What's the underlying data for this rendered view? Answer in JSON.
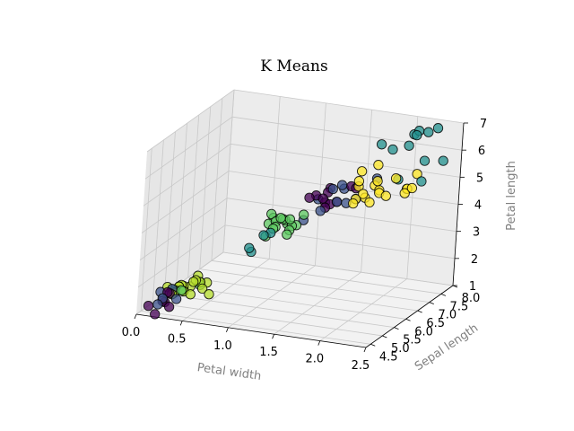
{
  "chart_data": {
    "type": "scatter",
    "projection": "3d",
    "title": "K Means",
    "axes": {
      "x": {
        "label": "Petal width",
        "range": [
          0.0,
          2.5
        ],
        "ticks": [
          "0.0",
          "0.5",
          "1.0",
          "1.5",
          "2.0",
          "2.5"
        ]
      },
      "y": {
        "label": "Sepal length",
        "range": [
          4.3,
          8.0
        ],
        "ticks": [
          "4.5",
          "5.0",
          "5.5",
          "6.0",
          "6.5",
          "7.0",
          "7.5",
          "8.0"
        ]
      },
      "z": {
        "label": "Petal length",
        "range": [
          1.0,
          7.0
        ],
        "ticks": [
          "1",
          "2",
          "3",
          "4",
          "5",
          "6",
          "7"
        ]
      }
    },
    "grid": true,
    "colormap": "viridis",
    "clusters": [
      {
        "color": "#440154",
        "points": [
          [
            0.2,
            4.6,
            1.4
          ],
          [
            0.1,
            4.4,
            1.3
          ],
          [
            0.2,
            4.3,
            1.1
          ],
          [
            0.2,
            4.8,
            1.6
          ],
          [
            0.3,
            4.5,
            1.3
          ],
          [
            0.2,
            4.7,
            1.3
          ],
          [
            0.2,
            4.9,
            1.5
          ],
          [
            1.5,
            6.7,
            4.4
          ],
          [
            1.4,
            6.6,
            4.4
          ],
          [
            1.7,
            6.7,
            5.0
          ],
          [
            1.4,
            6.8,
            4.8
          ],
          [
            1.3,
            6.3,
            4.7
          ],
          [
            1.5,
            6.4,
            4.5
          ],
          [
            1.6,
            6.9,
            4.9
          ],
          [
            1.4,
            6.5,
            4.6
          ],
          [
            1.3,
            6.6,
            4.6
          ],
          [
            1.5,
            6.2,
            4.5
          ],
          [
            1.4,
            6.7,
            4.7
          ]
        ]
      },
      {
        "color": "#3b528b",
        "points": [
          [
            0.2,
            4.4,
            1.4
          ],
          [
            0.2,
            4.6,
            1.5
          ],
          [
            0.1,
            4.9,
            1.5
          ],
          [
            0.2,
            5.0,
            1.6
          ],
          [
            0.3,
            4.8,
            1.4
          ],
          [
            1.5,
            7.0,
            4.7
          ],
          [
            1.5,
            6.9,
            4.9
          ],
          [
            1.8,
            6.3,
            4.9
          ],
          [
            1.5,
            6.5,
            5.0
          ],
          [
            1.6,
            6.3,
            4.7
          ],
          [
            1.8,
            7.2,
            5.1
          ],
          [
            1.3,
            6.7,
            4.4
          ],
          [
            1.5,
            6.0,
            4.5
          ],
          [
            1.7,
            6.3,
            4.7
          ],
          [
            1.3,
            6.1,
            4.0
          ]
        ]
      },
      {
        "color": "#21908d",
        "points": [
          [
            1.0,
            5.0,
            3.5
          ],
          [
            1.0,
            5.1,
            3.3
          ],
          [
            1.1,
            5.2,
            3.9
          ],
          [
            1.1,
            5.5,
            3.8
          ],
          [
            2.1,
            7.7,
            6.7
          ],
          [
            2.3,
            7.7,
            6.9
          ],
          [
            2.0,
            7.9,
            6.4
          ],
          [
            2.2,
            7.7,
            6.7
          ],
          [
            2.1,
            7.6,
            6.6
          ],
          [
            1.8,
            7.3,
            6.3
          ],
          [
            1.9,
            7.4,
            6.1
          ],
          [
            2.5,
            7.2,
            6.1
          ],
          [
            2.3,
            7.2,
            6.0
          ],
          [
            2.4,
            6.7,
            5.6
          ],
          [
            2.0,
            7.7,
            6.1
          ],
          [
            2.1,
            6.9,
            5.4
          ]
        ]
      },
      {
        "color": "#5ec962",
        "points": [
          [
            1.0,
            5.7,
            3.5
          ],
          [
            1.1,
            5.6,
            3.9
          ],
          [
            1.2,
            5.8,
            4.0
          ],
          [
            1.0,
            5.8,
            3.9
          ],
          [
            1.3,
            5.5,
            4.0
          ],
          [
            1.2,
            5.7,
            4.2
          ],
          [
            1.3,
            5.6,
            4.1
          ],
          [
            1.0,
            6.0,
            4.0
          ],
          [
            1.1,
            5.7,
            4.1
          ],
          [
            1.3,
            5.4,
            3.9
          ],
          [
            1.2,
            5.5,
            4.4
          ],
          [
            1.3,
            6.1,
            4.2
          ],
          [
            1.0,
            5.9,
            4.2
          ],
          [
            1.3,
            5.8,
            4.0
          ],
          [
            1.2,
            5.6,
            4.3
          ],
          [
            1.1,
            5.7,
            3.9
          ],
          [
            1.3,
            5.5,
            4.4
          ],
          [
            0.3,
            5.0,
            1.6
          ],
          [
            0.4,
            5.4,
            1.7
          ],
          [
            0.2,
            5.1,
            1.5
          ],
          [
            0.3,
            5.1,
            1.5
          ],
          [
            0.2,
            5.2,
            1.4
          ],
          [
            0.4,
            5.4,
            1.6
          ]
        ]
      },
      {
        "color": "#b5de2b",
        "points": [
          [
            0.2,
            5.1,
            1.4
          ],
          [
            0.4,
            5.4,
            1.7
          ],
          [
            0.2,
            5.0,
            1.4
          ],
          [
            0.2,
            5.4,
            1.5
          ],
          [
            0.1,
            5.2,
            1.5
          ],
          [
            0.2,
            5.3,
            1.5
          ],
          [
            0.4,
            5.7,
            1.5
          ],
          [
            0.3,
            5.7,
            1.7
          ],
          [
            0.2,
            5.5,
            1.3
          ],
          [
            0.5,
            5.1,
            1.7
          ],
          [
            0.6,
            5.0,
            1.6
          ],
          [
            0.4,
            5.2,
            1.9
          ],
          [
            0.2,
            5.5,
            1.4
          ],
          [
            0.3,
            5.1,
            1.5
          ],
          [
            0.2,
            5.8,
            1.2
          ],
          [
            0.4,
            5.0,
            1.5
          ],
          [
            0.2,
            5.3,
            1.5
          ],
          [
            0.4,
            5.1,
            1.9
          ]
        ]
      },
      {
        "color": "#fde725",
        "points": [
          [
            1.8,
            6.4,
            5.3
          ],
          [
            2.0,
            6.5,
            5.2
          ],
          [
            1.9,
            6.3,
            5.0
          ],
          [
            1.8,
            6.2,
            4.8
          ],
          [
            2.3,
            6.4,
            5.3
          ],
          [
            2.1,
            6.8,
            5.5
          ],
          [
            2.0,
            6.5,
            5.1
          ],
          [
            1.8,
            6.4,
            5.5
          ],
          [
            2.4,
            6.3,
            5.6
          ],
          [
            2.3,
            6.9,
            5.7
          ],
          [
            1.9,
            6.8,
            5.9
          ],
          [
            2.0,
            6.4,
            5.6
          ],
          [
            1.8,
            6.5,
            5.8
          ],
          [
            2.2,
            6.9,
            5.1
          ],
          [
            2.3,
            6.5,
            5.4
          ],
          [
            1.9,
            6.7,
            5.2
          ],
          [
            2.0,
            6.1,
            5.0
          ],
          [
            1.8,
            6.3,
            4.9
          ],
          [
            2.1,
            6.4,
            5.1
          ],
          [
            1.9,
            6.2,
            5.2
          ]
        ]
      }
    ]
  }
}
